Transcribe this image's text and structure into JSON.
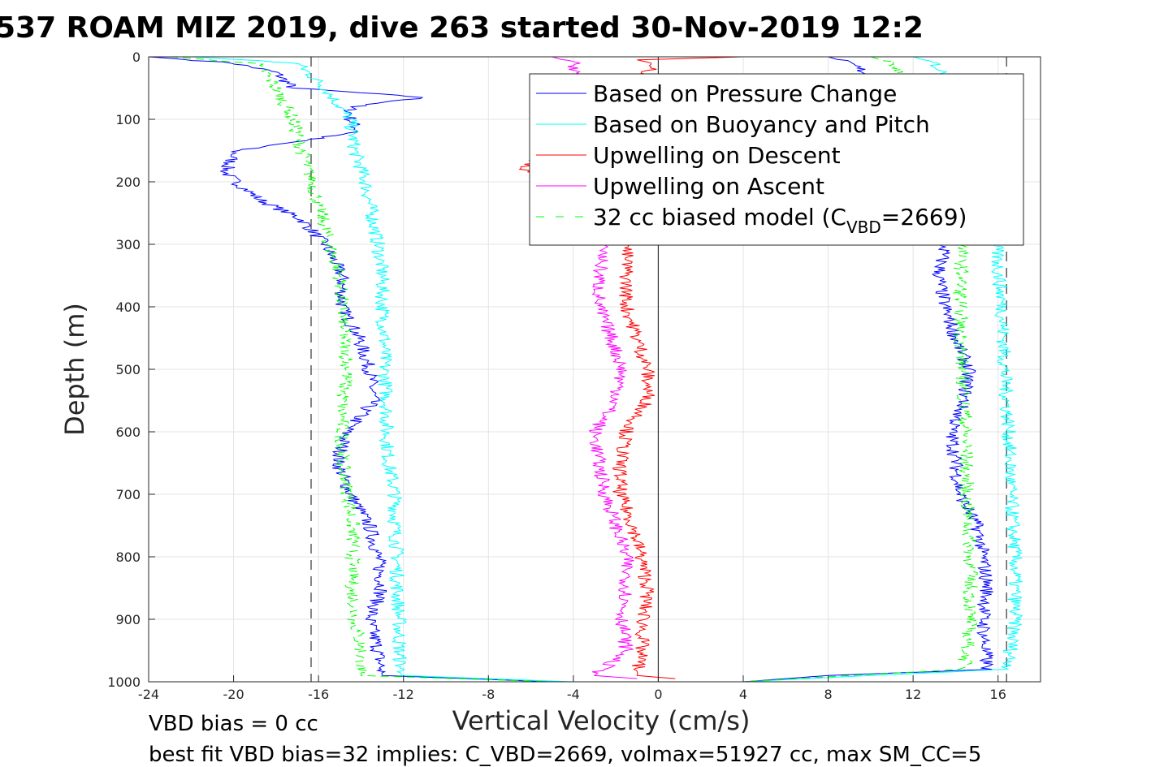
{
  "chart_data": {
    "type": "line",
    "title": "537 ROAM MIZ 2019, dive 263 started 30-Nov-2019 12:2",
    "xlabel": "Vertical Velocity (cm/s)",
    "ylabel": "Depth (m)",
    "xlim": [
      -24,
      18
    ],
    "ylim": [
      0,
      1000
    ],
    "y_reversed": true,
    "grid": true,
    "xticks": [
      "-24",
      "-20",
      "-16",
      "-12",
      "-8",
      "-4",
      "0",
      "4",
      "8",
      "12",
      "16"
    ],
    "xtick_values": [
      -24,
      -20,
      -16,
      -12,
      -8,
      -4,
      0,
      4,
      8,
      12,
      16
    ],
    "yticks": [
      "0",
      "100",
      "200",
      "300",
      "400",
      "500",
      "600",
      "700",
      "800",
      "900",
      "1000"
    ],
    "ytick_values": [
      0,
      100,
      200,
      300,
      400,
      500,
      600,
      700,
      800,
      900,
      1000
    ],
    "legend_placement": "top-right",
    "legend": [
      {
        "label": "Based on Pressure Change",
        "color": "#0000ff",
        "style": "solid"
      },
      {
        "label": "Based on Buoyancy and Pitch",
        "color": "#00ffff",
        "style": "solid"
      },
      {
        "label": "Upwelling on Descent",
        "color": "#ff0000",
        "style": "solid"
      },
      {
        "label": "Upwelling on Ascent",
        "color": "#ff00ff",
        "style": "solid"
      },
      {
        "label_main": "32 cc biased model (C",
        "label_sub": "VBD",
        "label_end": "=2669)",
        "color": "#00ff00",
        "style": "dashed"
      }
    ],
    "reference_lines": [
      {
        "x": -16.35,
        "style": "dashed",
        "color": "#333333"
      },
      {
        "x": 16.4,
        "style": "dashed",
        "color": "#333333"
      },
      {
        "x": 0,
        "style": "solid",
        "color": "#333333"
      }
    ],
    "series": [
      {
        "name": "Pressure change (descent)",
        "color": "#0000ff",
        "depth": [
          0,
          10,
          25,
          50,
          65,
          80,
          100,
          120,
          150,
          185,
          200,
          230,
          260,
          300,
          350,
          400,
          450,
          500,
          550,
          600,
          650,
          700,
          750,
          800,
          850,
          900,
          950,
          990,
          1000
        ],
        "values": [
          -24,
          -20,
          -18,
          -17.2,
          -11,
          -14.5,
          -14.5,
          -14.1,
          -19.9,
          -20.4,
          -19.9,
          -18.7,
          -16.8,
          -15.7,
          -14.9,
          -14.9,
          -14.1,
          -13.6,
          -13.4,
          -14.7,
          -15.1,
          -14.5,
          -13.6,
          -13.2,
          -13.0,
          -13.6,
          -13.2,
          -13.0,
          -5
        ]
      },
      {
        "name": "Buoyancy and pitch (descent)",
        "color": "#00ffff",
        "depth": [
          0,
          10,
          25,
          50,
          100,
          150,
          200,
          250,
          300,
          350,
          400,
          450,
          500,
          550,
          600,
          650,
          700,
          750,
          800,
          850,
          900,
          950,
          990,
          1000
        ],
        "values": [
          -22,
          -17,
          -16.5,
          -15.7,
          -14.5,
          -14.3,
          -13.8,
          -13.5,
          -13.2,
          -13,
          -13,
          -12.9,
          -12.9,
          -12.8,
          -12.8,
          -12.7,
          -12.4,
          -12.4,
          -12.3,
          -12.3,
          -12.2,
          -12.2,
          -12.1,
          -4
        ]
      },
      {
        "name": "Biased model (descent)",
        "color": "#00ff00",
        "dashed": true,
        "depth": [
          0,
          10,
          25,
          50,
          100,
          150,
          200,
          250,
          300,
          350,
          400,
          450,
          500,
          550,
          600,
          650,
          700,
          750,
          800,
          850,
          900,
          950,
          990,
          1000
        ],
        "values": [
          -23,
          -19,
          -18.5,
          -18,
          -17.2,
          -16.8,
          -16.3,
          -15.9,
          -15.5,
          -15,
          -14.9,
          -14.8,
          -14.6,
          -14.9,
          -14.9,
          -14.9,
          -14.6,
          -14.4,
          -14.4,
          -14.4,
          -14.3,
          -14.0,
          -14.0,
          -5
        ]
      },
      {
        "name": "Pressure change (ascent)",
        "color": "#0000ff",
        "depth": [
          0,
          10,
          30,
          100,
          200,
          300,
          350,
          400,
          450,
          500,
          550,
          600,
          650,
          700,
          750,
          800,
          850,
          900,
          950,
          980,
          990,
          1000
        ],
        "values": [
          8,
          9,
          10,
          12,
          13,
          13.5,
          13.2,
          13.5,
          14,
          14.6,
          14.4,
          13.8,
          14,
          14.2,
          15,
          15.3,
          15.5,
          15.3,
          15.4,
          15.5,
          8,
          4
        ]
      },
      {
        "name": "Buoyancy and pitch (ascent)",
        "color": "#00ffff",
        "depth": [
          0,
          10,
          30,
          100,
          200,
          300,
          400,
          500,
          600,
          700,
          800,
          900,
          980,
          990,
          1000
        ],
        "values": [
          12,
          13,
          13.5,
          14.5,
          15.5,
          15.9,
          16.2,
          16.3,
          16.5,
          16.6,
          16.8,
          16.8,
          16.5,
          10,
          4
        ]
      },
      {
        "name": "Biased model (ascent)",
        "color": "#00ff00",
        "dashed": true,
        "depth": [
          0,
          10,
          30,
          100,
          200,
          300,
          400,
          500,
          600,
          700,
          800,
          900,
          980,
          990,
          1000
        ],
        "values": [
          10,
          11,
          11.5,
          12.5,
          13.8,
          14.3,
          14.2,
          14.3,
          14.5,
          14.5,
          14.7,
          14.7,
          14.4,
          9,
          4
        ]
      },
      {
        "name": "Upwelling on Descent",
        "color": "#ff0000",
        "depth": [
          0,
          5,
          10,
          50,
          100,
          180,
          200,
          300,
          350,
          400,
          450,
          500,
          550,
          600,
          650,
          700,
          750,
          800,
          850,
          900,
          950,
          990,
          995
        ],
        "values": [
          4,
          -1,
          0,
          -1.5,
          -3,
          -6.5,
          -4,
          -1.5,
          -1.5,
          -1.5,
          -1,
          -0.5,
          -0.5,
          -1.5,
          -1.8,
          -1.8,
          -1.2,
          -0.8,
          -0.5,
          -0.7,
          -0.8,
          -1,
          0.8
        ]
      },
      {
        "name": "Upwelling on Ascent",
        "color": "#ff00ff",
        "depth": [
          0,
          10,
          50,
          100,
          200,
          300,
          350,
          400,
          450,
          500,
          550,
          600,
          650,
          700,
          750,
          800,
          850,
          900,
          950,
          990,
          995
        ],
        "values": [
          -5,
          -4,
          -3.5,
          -3,
          -2.8,
          -2.5,
          -2.8,
          -2.8,
          -2.2,
          -1.7,
          -2,
          -3,
          -2.8,
          -2.5,
          -2,
          -1.5,
          -1.5,
          -1.7,
          -1.5,
          -3,
          -1
        ]
      }
    ]
  },
  "annotations": {
    "line1": "VBD bias = 0 cc",
    "line2": "best fit VBD bias=32 implies: C_VBD=2669, volmax=51927 cc, max SM_CC=5"
  }
}
